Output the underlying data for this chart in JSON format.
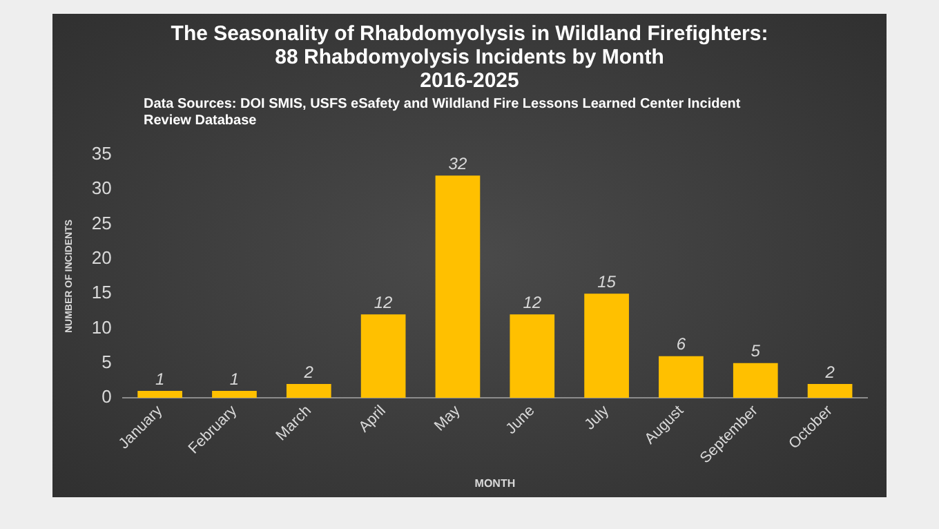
{
  "chart_data": {
    "type": "bar",
    "title": "The Seasonality of Rhabdomyolysis in Wildland Firefighters:\n88 Rhabdomyolysis Incidents by Month\n2016-2025",
    "subtitle": "Data Sources: DOI SMIS, USFS eSafety and Wildland Fire Lessons Learned Center Incident Review Database",
    "xlabel": "MONTH",
    "ylabel": "NUMBER OF INCIDENTS",
    "categories": [
      "January",
      "February",
      "March",
      "April",
      "May",
      "June",
      "July",
      "August",
      "September",
      "October"
    ],
    "values": [
      1,
      1,
      2,
      12,
      32,
      12,
      15,
      6,
      5,
      2
    ],
    "color": "#ffc000",
    "ylim": [
      0,
      35
    ],
    "yticks": [
      0,
      5,
      10,
      15,
      20,
      25,
      30,
      35
    ],
    "grid": false,
    "data_labels": true
  }
}
